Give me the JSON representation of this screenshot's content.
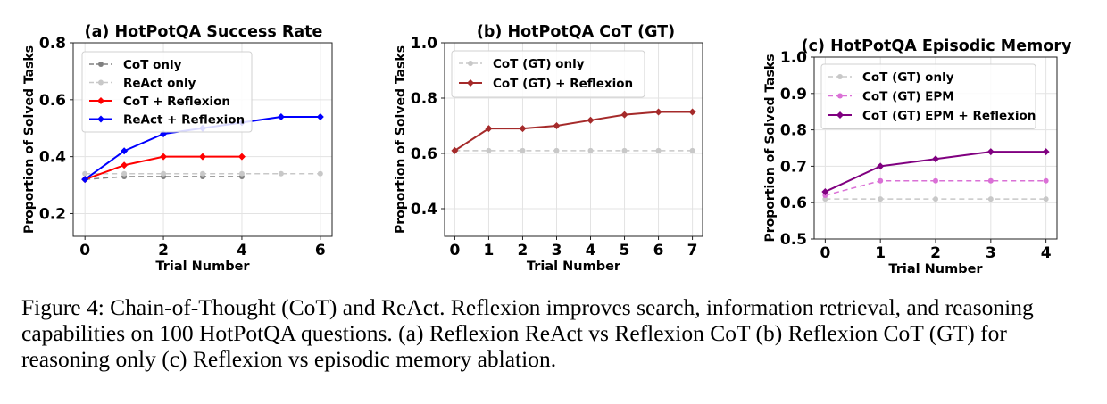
{
  "caption": "Figure 4: Chain-of-Thought (CoT) and ReAct. Reflexion improves search, information retrieval, and reasoning capabilities on 100 HotPotQA questions. (a) Reflexion ReAct vs Reflexion CoT (b) Reflexion CoT (GT) for reasoning only (c) Reflexion vs episodic memory ablation.",
  "chart_data": [
    {
      "type": "line",
      "title": "(a) HotPotQA Success Rate",
      "xlabel": "Trial Number",
      "ylabel": "Proportion of Solved Tasks",
      "xlim": [
        -0.3,
        6.3
      ],
      "ylim": [
        0.12,
        0.8
      ],
      "xticks": [
        0,
        2,
        4,
        6
      ],
      "yticks": [
        0.2,
        0.4,
        0.6,
        0.8
      ],
      "grid": true,
      "legend": "top-left",
      "series": [
        {
          "name": "CoT only",
          "x": [
            0,
            1,
            2,
            3,
            4
          ],
          "values": [
            0.32,
            0.33,
            0.33,
            0.33,
            0.33
          ],
          "color": "#808080",
          "dashed": true,
          "marker": "circle"
        },
        {
          "name": "ReAct only",
          "x": [
            0,
            1,
            2,
            3,
            4,
            5,
            6
          ],
          "values": [
            0.34,
            0.34,
            0.34,
            0.34,
            0.34,
            0.34,
            0.34
          ],
          "color": "#c8c8c8",
          "dashed": true,
          "marker": "circle"
        },
        {
          "name": "CoT + Reflexion",
          "x": [
            0,
            1,
            2,
            3,
            4
          ],
          "values": [
            0.32,
            0.37,
            0.4,
            0.4,
            0.4
          ],
          "color": "#ff0000",
          "dashed": false,
          "marker": "diamond"
        },
        {
          "name": "ReAct + Reflexion",
          "x": [
            0,
            1,
            2,
            3,
            4,
            5,
            6
          ],
          "values": [
            0.32,
            0.42,
            0.48,
            0.5,
            0.52,
            0.54,
            0.54
          ],
          "color": "#0000ff",
          "dashed": false,
          "marker": "diamond"
        }
      ]
    },
    {
      "type": "line",
      "title": "(b) HotPotQA CoT (GT)",
      "xlabel": "Trial Number",
      "ylabel": "Proportion of Solved Tasks",
      "xlim": [
        -0.3,
        7.3
      ],
      "ylim": [
        0.3,
        1.0
      ],
      "xticks": [
        0,
        1,
        2,
        3,
        4,
        5,
        6,
        7
      ],
      "yticks": [
        0.4,
        0.6,
        0.8,
        1.0
      ],
      "grid": true,
      "legend": "top-left",
      "series": [
        {
          "name": "CoT (GT) only",
          "x": [
            0,
            1,
            2,
            3,
            4,
            5,
            6,
            7
          ],
          "values": [
            0.61,
            0.61,
            0.61,
            0.61,
            0.61,
            0.61,
            0.61,
            0.61
          ],
          "color": "#c8c8c8",
          "dashed": true,
          "marker": "circle"
        },
        {
          "name": "CoT (GT) + Reflexion",
          "x": [
            0,
            1,
            2,
            3,
            4,
            5,
            6,
            7
          ],
          "values": [
            0.61,
            0.69,
            0.69,
            0.7,
            0.72,
            0.74,
            0.75,
            0.75
          ],
          "color": "#a52a2a",
          "dashed": false,
          "marker": "diamond"
        }
      ]
    },
    {
      "type": "line",
      "title": "(c) HotPotQA Episodic Memory",
      "xlabel": "Trial Number",
      "ylabel": "Proportion of Solved Tasks",
      "xlim": [
        -0.2,
        4.2
      ],
      "ylim": [
        0.5,
        1.0
      ],
      "xticks": [
        0,
        1,
        2,
        3,
        4
      ],
      "yticks": [
        0.5,
        0.6,
        0.7,
        0.8,
        0.9,
        1.0
      ],
      "grid": true,
      "legend": "top-left",
      "series": [
        {
          "name": "CoT (GT) only",
          "x": [
            0,
            1,
            2,
            3,
            4
          ],
          "values": [
            0.61,
            0.61,
            0.61,
            0.61,
            0.61
          ],
          "color": "#c8c8c8",
          "dashed": true,
          "marker": "circle"
        },
        {
          "name": "CoT (GT) EPM",
          "x": [
            0,
            1,
            2,
            3,
            4
          ],
          "values": [
            0.62,
            0.66,
            0.66,
            0.66,
            0.66
          ],
          "color": "#da70d6",
          "dashed": true,
          "marker": "circle"
        },
        {
          "name": "CoT (GT) EPM + Reflexion",
          "x": [
            0,
            1,
            2,
            3,
            4
          ],
          "values": [
            0.63,
            0.7,
            0.72,
            0.74,
            0.74
          ],
          "color": "#800080",
          "dashed": false,
          "marker": "diamond"
        }
      ]
    }
  ]
}
